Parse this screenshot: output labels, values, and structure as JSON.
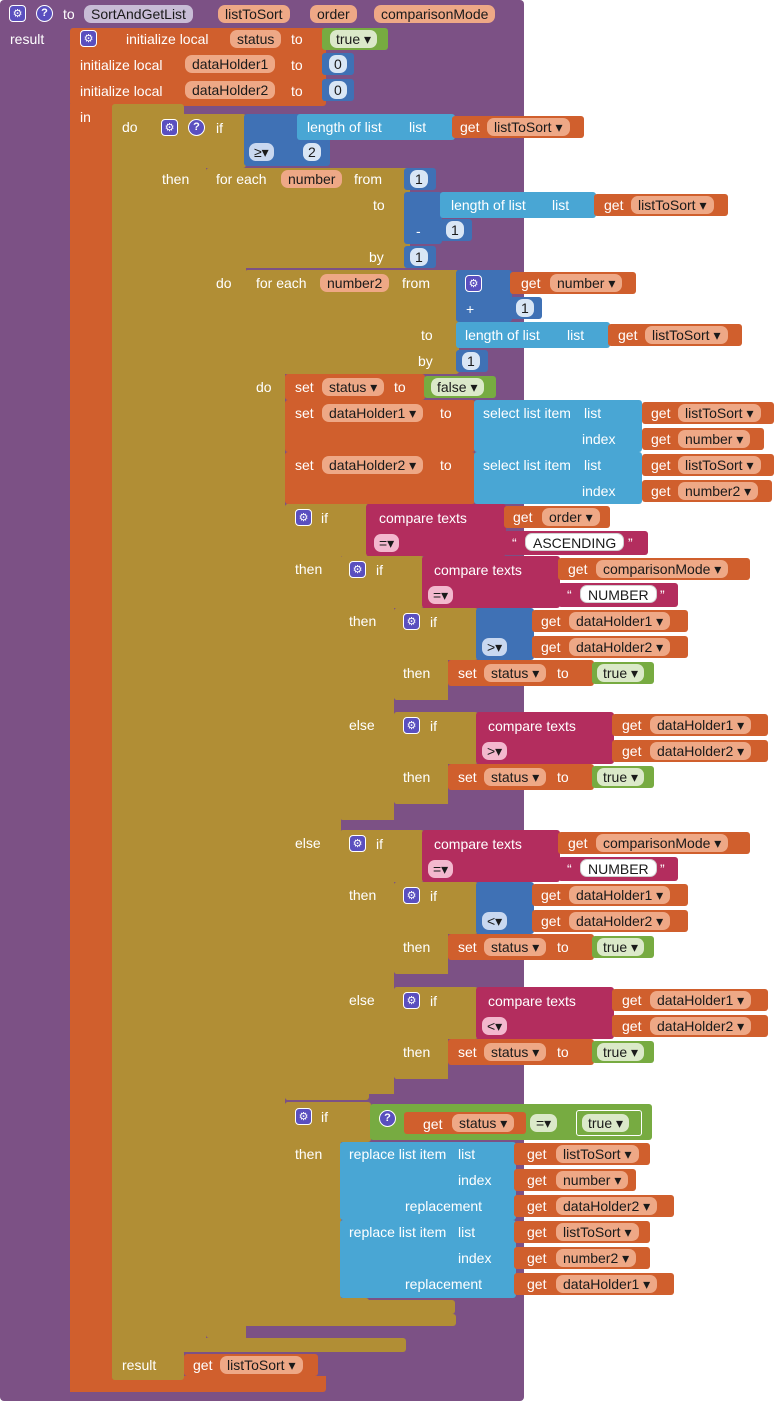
{
  "kw": {
    "to": "to",
    "result": "result",
    "initialize_local": "initialize local",
    "in": "in",
    "do": "do",
    "if": "if",
    "then": "then",
    "else": "else",
    "for_each": "for each",
    "from": "from",
    "by": "by",
    "length_of_list": "length of list",
    "list": "list",
    "get": "get",
    "set": "set",
    "select_list_item": "select list item",
    "index": "index",
    "compare_texts": "compare texts",
    "replace_list_item": "replace list item",
    "replacement": "replacement",
    "true": "true",
    "false": "false",
    "minus": "-",
    "plus": "+",
    "open_quote": "“",
    "close_quote": "”"
  },
  "proc": {
    "name": "SortAndGetList",
    "params": [
      "listToSort",
      "order",
      "comparisonMode"
    ]
  },
  "vars": {
    "status": "status",
    "dataHolder1": "dataHolder1",
    "dataHolder2": "dataHolder2",
    "number": "number",
    "number2": "number2",
    "listToSort": "listToSort",
    "order": "order",
    "comparisonMode": "comparisonMode"
  },
  "numbers": {
    "zero": "0",
    "one": "1",
    "two": "2"
  },
  "ops": {
    "gte": "≥▾",
    "eq": "=▾",
    "gt": ">▾",
    "lt": "<▾"
  },
  "strings": {
    "ascending": "ASCENDING",
    "number_mode": "NUMBER"
  },
  "colors": {
    "procedure": "#7c5185",
    "variables": "#d05f2d",
    "control": "#b18e35",
    "logic": "#77ab41",
    "math": "#3f71b5",
    "lists": "#49a6d4",
    "text": "#b32d5e"
  },
  "icons": {
    "mutator": "gear-icon",
    "help": "help-icon"
  }
}
